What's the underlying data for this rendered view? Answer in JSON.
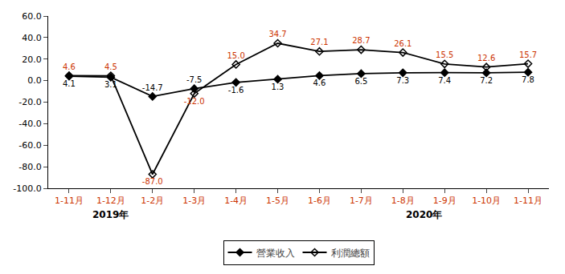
{
  "chart_data": {
    "type": "line",
    "categories": [
      "1-11月",
      "1-12月",
      "1-2月",
      "1-3月",
      "1-4月",
      "1-5月",
      "1-6月",
      "1-7月",
      "1-8月",
      "1-9月",
      "1-10月",
      "1-11月"
    ],
    "series": [
      {
        "name": "營業收入",
        "color": "#000000",
        "marker": "diamond",
        "values": [
          4.1,
          3.1,
          -14.7,
          -7.5,
          -1.6,
          1.3,
          4.6,
          6.5,
          7.3,
          7.4,
          7.2,
          7.8
        ]
      },
      {
        "name": "利潤總額",
        "color": "#000000",
        "marker": "diamond-open",
        "values": [
          4.6,
          4.5,
          -87.0,
          -12.0,
          15.0,
          34.7,
          27.1,
          28.7,
          26.1,
          15.5,
          12.6,
          15.7
        ],
        "value_labels": [
          "4.6",
          "4.5",
          "-87.0",
          "-12.0",
          "15.0",
          "34.7",
          "27.1",
          "28.7",
          "26.1",
          "15.5",
          "12.6",
          "15.7"
        ]
      }
    ],
    "ylim": [
      -100.0,
      60.0
    ],
    "yticks": [
      {
        "value": -100,
        "label": "-100.0"
      },
      {
        "value": -80,
        "label": "-80.0"
      },
      {
        "value": -60,
        "label": "-60.0"
      },
      {
        "value": -40,
        "label": "-40.0"
      },
      {
        "value": -20,
        "label": "-20.0"
      },
      {
        "value": 0,
        "label": "0.0"
      },
      {
        "value": 20,
        "label": "20.0"
      },
      {
        "value": 40,
        "label": "40.0"
      },
      {
        "value": 60,
        "label": "60.0"
      }
    ],
    "grid": false,
    "legend": "bottom",
    "data_labels": true,
    "annotations": [
      "2019年",
      "2020年"
    ]
  }
}
